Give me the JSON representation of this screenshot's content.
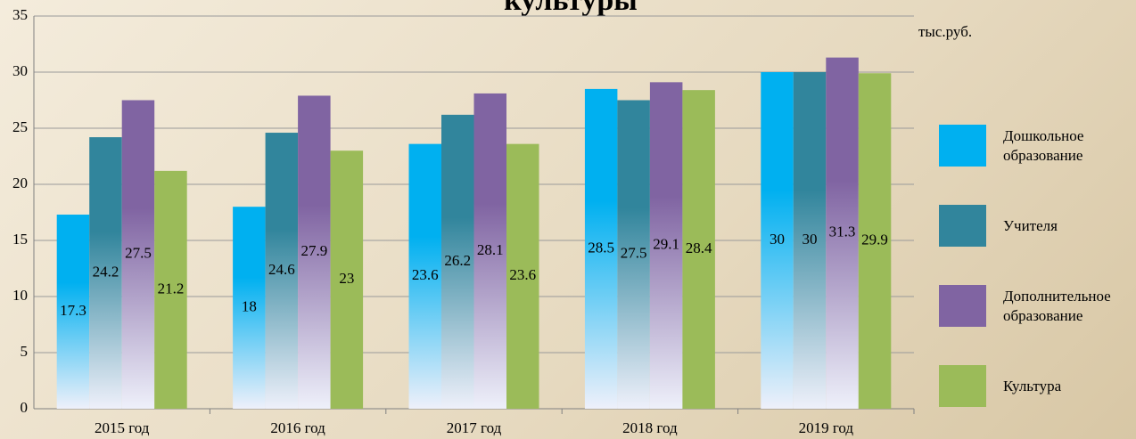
{
  "chart_data": {
    "type": "bar",
    "title": "культуры",
    "unit_label": "тыс.руб.",
    "categories": [
      "2015 год",
      "2016 год",
      "2017 год",
      "2018 год",
      "2019 год"
    ],
    "series": [
      {
        "name": "Дошкольное образование",
        "color": "#00b0f0",
        "values": [
          17.3,
          18,
          23.6,
          28.5,
          30
        ]
      },
      {
        "name": "Учителя",
        "color": "#31859c",
        "values": [
          24.2,
          24.6,
          26.2,
          27.5,
          30
        ]
      },
      {
        "name": "Дополнительное образование",
        "color": "#8064a2",
        "values": [
          27.5,
          27.9,
          28.1,
          29.1,
          31.3
        ]
      },
      {
        "name": "Культура",
        "color": "#9bbb59",
        "values": [
          21.2,
          23,
          23.6,
          28.4,
          29.9
        ]
      }
    ],
    "ylim": [
      0,
      35
    ],
    "yticks": [
      0,
      5,
      10,
      15,
      20,
      25,
      30,
      35
    ],
    "grid": true,
    "legend": "right"
  }
}
